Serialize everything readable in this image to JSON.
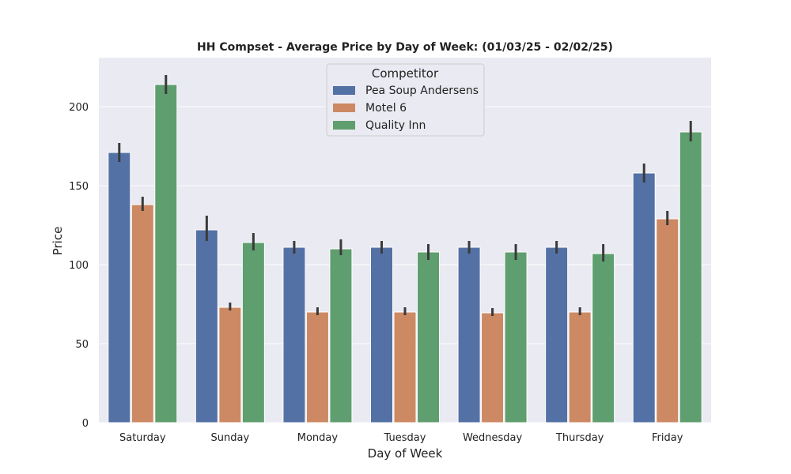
{
  "chart_data": {
    "type": "bar",
    "title": "HH Compset - Average Price by Day of Week: (01/03/25 - 02/02/25)",
    "xlabel": "Day of Week",
    "ylabel": "Price",
    "ylim": [
      0,
      230
    ],
    "yticks": [
      0,
      50,
      100,
      150,
      200
    ],
    "grid": true,
    "legend": {
      "title": "Competitor",
      "placement": "top-center"
    },
    "categories": [
      "Saturday",
      "Sunday",
      "Monday",
      "Tuesday",
      "Wednesday",
      "Thursday",
      "Friday"
    ],
    "series": [
      {
        "name": "Pea Soup Andersens",
        "color": "#5471a6",
        "values": [
          171,
          122,
          111,
          111,
          111,
          111,
          158
        ],
        "error_low": [
          165,
          115,
          107,
          107,
          107,
          107,
          152
        ],
        "error_high": [
          177,
          131,
          115,
          115,
          115,
          115,
          164
        ]
      },
      {
        "name": "Motel 6",
        "color": "#cc8963",
        "values": [
          138,
          73,
          70,
          70,
          69.5,
          70,
          129
        ],
        "error_low": [
          134,
          71,
          68,
          68,
          67.5,
          68,
          125
        ],
        "error_high": [
          143,
          76,
          73,
          73,
          72.5,
          73,
          134
        ]
      },
      {
        "name": "Quality Inn",
        "color": "#5f9e6e",
        "values": [
          214,
          114,
          110,
          108,
          108,
          107,
          184
        ],
        "error_low": [
          208,
          109,
          106,
          103,
          103,
          102,
          178
        ],
        "error_high": [
          220,
          120,
          116,
          113,
          113,
          113,
          191
        ]
      }
    ]
  }
}
